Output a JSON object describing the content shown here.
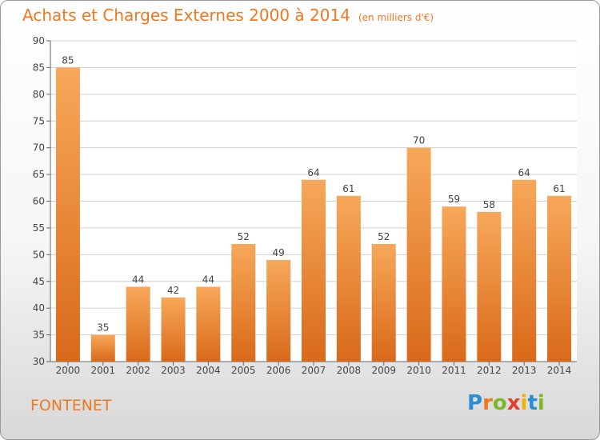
{
  "title": "Achats et Charges Externes 2000 à 2014",
  "subtitle": "(en milliers d'€)",
  "location": "FONTENET",
  "brand": {
    "letters": [
      "P",
      "r",
      "o",
      "x",
      "i",
      "t",
      "i"
    ],
    "colors": [
      "#2a8fd0",
      "#f07820",
      "#7cb829",
      "#e63c2f",
      "#f0b400",
      "#2a8fd0",
      "#7cb829"
    ]
  },
  "colors": {
    "bar_top": "#f7a85a",
    "bar_bottom": "#d9691a",
    "accent": "#f07820",
    "grid": "#d0d0d0"
  },
  "chart_data": {
    "type": "bar",
    "categories": [
      "2000",
      "2001",
      "2002",
      "2003",
      "2004",
      "2005",
      "2006",
      "2007",
      "2008",
      "2009",
      "2010",
      "2011",
      "2012",
      "2013",
      "2014"
    ],
    "values": [
      85,
      35,
      44,
      42,
      44,
      52,
      49,
      64,
      61,
      52,
      70,
      59,
      58,
      64,
      61
    ],
    "yticks": [
      30,
      35,
      40,
      45,
      50,
      55,
      60,
      65,
      70,
      75,
      80,
      85,
      90
    ],
    "ylim": [
      30,
      90
    ],
    "grid": true,
    "xlabel": "",
    "ylabel": ""
  }
}
